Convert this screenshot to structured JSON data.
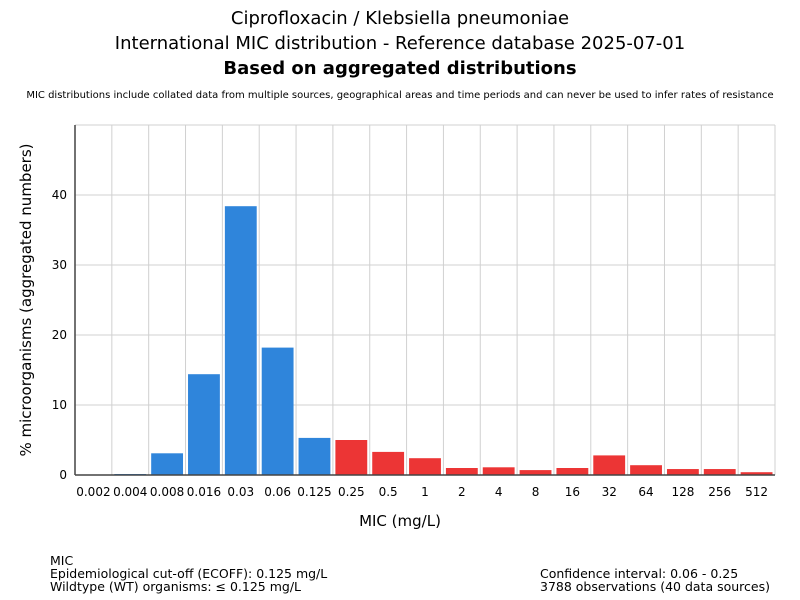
{
  "title_line1": "Ciprofloxacin / Klebsiella pneumoniae",
  "title_line2": "International MIC distribution - Reference database 2025-07-01",
  "title_line3": "Based on aggregated distributions",
  "subtitle": "MIC distributions include collated data from multiple sources, geographical areas and time periods and can never be used to infer rates of resistance",
  "chart_data": {
    "type": "bar",
    "xlabel": "MIC (mg/L)",
    "ylabel": "% microorganisms (aggregated numbers)",
    "categories": [
      "0.002",
      "0.004",
      "0.008",
      "0.016",
      "0.03",
      "0.06",
      "0.125",
      "0.25",
      "0.5",
      "1",
      "2",
      "4",
      "8",
      "16",
      "32",
      "64",
      "128",
      "256",
      "512"
    ],
    "values": [
      0,
      0.14,
      3.1,
      14.4,
      38.4,
      18.2,
      5.3,
      5.0,
      3.3,
      2.4,
      1.0,
      1.1,
      0.7,
      1.0,
      2.8,
      1.4,
      0.85,
      0.85,
      0.4
    ],
    "groups": [
      "wt",
      "wt",
      "wt",
      "wt",
      "wt",
      "wt",
      "wt",
      "nwt",
      "nwt",
      "nwt",
      "nwt",
      "nwt",
      "nwt",
      "nwt",
      "nwt",
      "nwt",
      "nwt",
      "nwt",
      "nwt"
    ],
    "colors": {
      "wt": "#2f85db",
      "nwt": "#ec3535"
    },
    "yticks": [
      0,
      10,
      20,
      30,
      40
    ],
    "ylim": [
      0,
      50
    ],
    "grid": true
  },
  "footer": {
    "left": [
      "MIC",
      "Epidemiological cut-off (ECOFF): 0.125 mg/L",
      "Wildtype (WT) organisms: ≤ 0.125 mg/L"
    ],
    "right": [
      "Confidence interval: 0.06 - 0.25",
      "3788 observations (40 data sources)"
    ]
  }
}
